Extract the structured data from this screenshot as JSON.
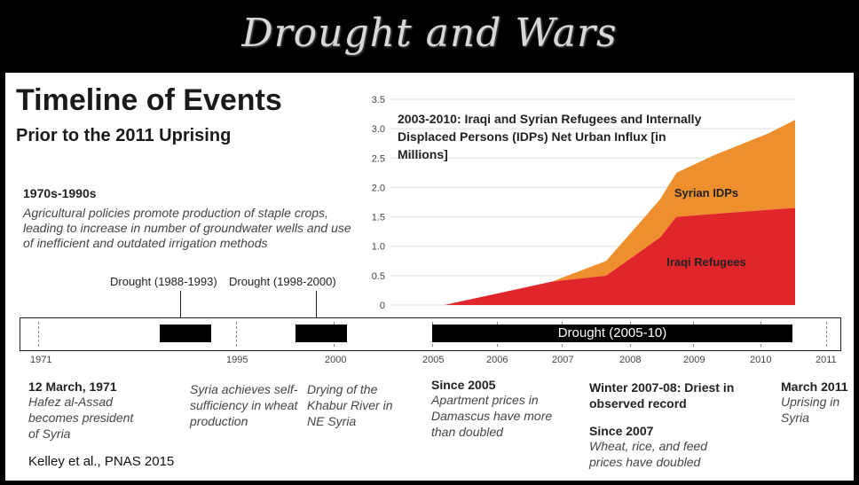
{
  "slide": {
    "title": "Drought and Wars"
  },
  "heading": {
    "title": "Timeline of Events",
    "subtitle": "Prior to the 2011 Uprising"
  },
  "era": {
    "title": "1970s-1990s",
    "text": "Agricultural policies promote production of staple crops, leading to increase in number of groundwater wells and use of inefficient and outdated irrigation methods"
  },
  "droughts": {
    "d1": "Drought (1988-1993)",
    "d2": "Drought (1998-2000)",
    "d3": "Drought (2005-10)"
  },
  "timeline": {
    "tick_labels": [
      "1971",
      "1995",
      "2000",
      "2005",
      "2006",
      "2007",
      "2008",
      "2009",
      "2010",
      "2011"
    ]
  },
  "events": [
    {
      "head": "12 March, 1971",
      "text": "Hafez al-Assad becomes president of Syria"
    },
    {
      "head": "",
      "text": "Syria achieves self-sufficiency in wheat production"
    },
    {
      "head": "",
      "text": "Drying of the Khabur River in NE Syria"
    },
    {
      "head": "Since 2005",
      "text": "Apartment prices in Damascus have more than doubled"
    },
    {
      "head": "Winter 2007-08: Driest in observed record",
      "text": ""
    },
    {
      "head": "Since 2007",
      "text": "Wheat, rice, and feed prices have doubled"
    },
    {
      "head": "March 2011",
      "text": "Uprising in Syria"
    }
  ],
  "citation": "Kelley et al., PNAS 2015",
  "colors": {
    "iraqi": "#e0262b",
    "syrian": "#ee8f2e",
    "bar": "#000000"
  },
  "chart_data": {
    "type": "area",
    "title": "2003-2010: Iraqi and Syrian Refugees and Internally Displaced Persons (IDPs) Net Urban Influx [in Millions]",
    "x": [
      2003,
      2004,
      2005,
      2006,
      2007,
      2008,
      2008.3,
      2009,
      2010,
      2010.5
    ],
    "ylim": [
      0,
      3.5
    ],
    "yticks": [
      "0",
      "0.5",
      "1.0",
      "1.5",
      "2.0",
      "2.5",
      "3.0",
      "3.5"
    ],
    "series": [
      {
        "name": "Iraqi Refugees",
        "values": [
          0,
          0,
          0.2,
          0.4,
          0.5,
          1.15,
          1.5,
          1.55,
          1.62,
          1.65
        ]
      },
      {
        "name": "Syrian IDPs",
        "values": [
          0,
          0,
          0,
          0,
          0.25,
          0.65,
          0.75,
          1.0,
          1.3,
          1.5
        ]
      }
    ]
  }
}
